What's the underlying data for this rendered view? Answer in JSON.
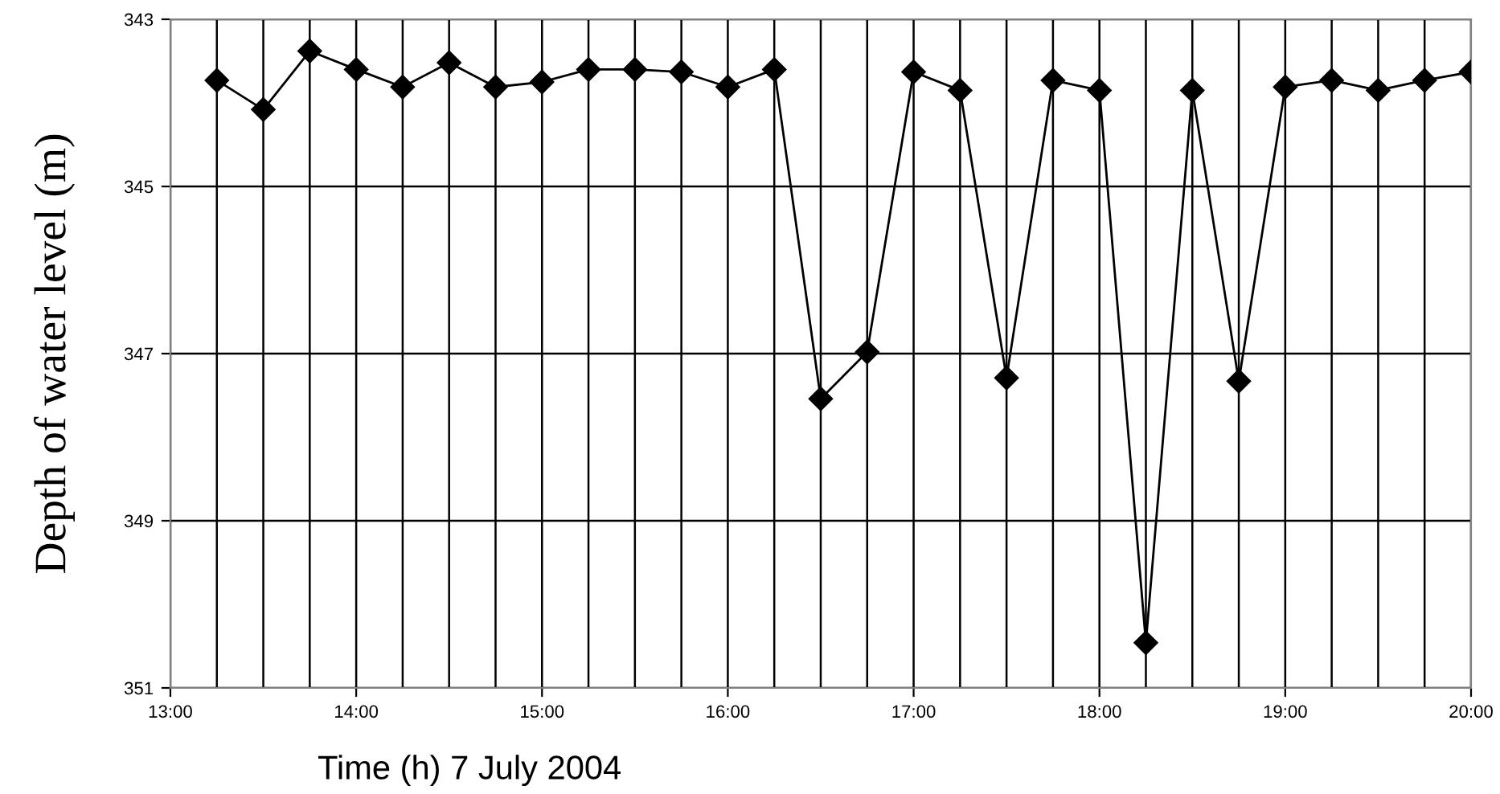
{
  "chart_data": {
    "type": "line",
    "xlabel": "Time (h) 7 July 2004",
    "ylabel": "Depth of water level (m)",
    "x": [
      13.25,
      13.5,
      13.75,
      14.0,
      14.25,
      14.5,
      14.75,
      15.0,
      15.25,
      15.5,
      15.75,
      16.0,
      16.25,
      16.5,
      16.75,
      17.0,
      17.25,
      17.5,
      17.75,
      18.0,
      18.25,
      18.5,
      18.75,
      19.0,
      19.25,
      19.5,
      19.75,
      20.0
    ],
    "series": [
      {
        "color": "#000000",
        "values": [
          343.73,
          344.08,
          343.38,
          343.6,
          343.81,
          343.52,
          343.81,
          343.75,
          343.6,
          343.6,
          343.63,
          343.81,
          343.6,
          347.54,
          346.98,
          343.63,
          343.85,
          347.29,
          343.73,
          343.85,
          350.46,
          343.85,
          347.33,
          343.81,
          343.73,
          343.85,
          343.73,
          343.63
        ]
      }
    ],
    "xlim": [
      13,
      20
    ],
    "xticks": [
      {
        "value": 13,
        "label": "13:00"
      },
      {
        "value": 13.25,
        "label": null
      },
      {
        "value": 13.5,
        "label": null
      },
      {
        "value": 13.75,
        "label": null
      },
      {
        "value": 14,
        "label": "14:00"
      },
      {
        "value": 14.25,
        "label": null
      },
      {
        "value": 14.5,
        "label": null
      },
      {
        "value": 14.75,
        "label": null
      },
      {
        "value": 15,
        "label": "15:00"
      },
      {
        "value": 15.25,
        "label": null
      },
      {
        "value": 15.5,
        "label": null
      },
      {
        "value": 15.75,
        "label": null
      },
      {
        "value": 16,
        "label": "16:00"
      },
      {
        "value": 16.25,
        "label": null
      },
      {
        "value": 16.5,
        "label": null
      },
      {
        "value": 16.75,
        "label": null
      },
      {
        "value": 17,
        "label": "17:00"
      },
      {
        "value": 17.25,
        "label": null
      },
      {
        "value": 17.5,
        "label": null
      },
      {
        "value": 17.75,
        "label": null
      },
      {
        "value": 18,
        "label": "18:00"
      },
      {
        "value": 18.25,
        "label": null
      },
      {
        "value": 18.5,
        "label": null
      },
      {
        "value": 18.75,
        "label": null
      },
      {
        "value": 19,
        "label": "19:00"
      },
      {
        "value": 19.25,
        "label": null
      },
      {
        "value": 19.5,
        "label": null
      },
      {
        "value": 19.75,
        "label": null
      },
      {
        "value": 20,
        "label": "20:00"
      }
    ],
    "ylim": [
      351,
      343
    ],
    "yticks": [
      343,
      345,
      347,
      349,
      351
    ],
    "grid": true,
    "legend": false,
    "marker": "diamond",
    "line_style": "solid"
  }
}
